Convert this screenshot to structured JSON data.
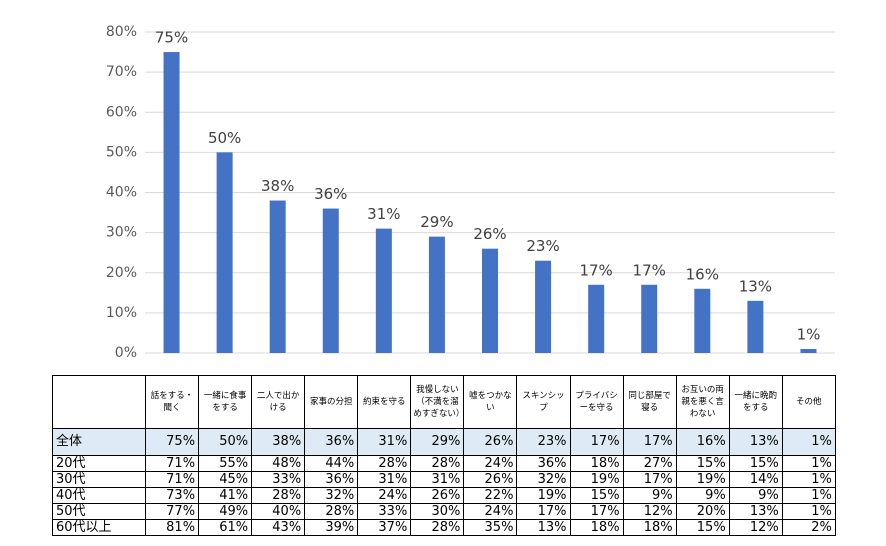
{
  "chart_data": {
    "type": "bar",
    "categories": [
      "話をする・聞く",
      "一緒に食事をする",
      "二人で出かける",
      "家事の分担",
      "約束を守る",
      "我慢しない（不満を溜めすぎない）",
      "嘘をつかない",
      "スキンシップ",
      "プライバシーを守る",
      "同じ部屋で寝る",
      "お互いの両親を悪く言わない",
      "一緒に晩酌をする",
      "その他"
    ],
    "values": [
      75,
      50,
      38,
      36,
      31,
      29,
      26,
      23,
      17,
      17,
      16,
      13,
      1
    ],
    "value_labels": [
      "75%",
      "50%",
      "38%",
      "36%",
      "31%",
      "29%",
      "26%",
      "23%",
      "17%",
      "17%",
      "16%",
      "13%",
      "1%"
    ],
    "color": "#4472c4",
    "ylim": [
      0,
      80
    ],
    "yticks": [
      {
        "value": 0,
        "label": "0%"
      },
      {
        "value": 10,
        "label": "10%"
      },
      {
        "value": 20,
        "label": "20%"
      },
      {
        "value": 30,
        "label": "30%"
      },
      {
        "value": 40,
        "label": "40%"
      },
      {
        "value": 50,
        "label": "50%"
      },
      {
        "value": 60,
        "label": "60%"
      },
      {
        "value": 70,
        "label": "70%"
      },
      {
        "value": 80,
        "label": "80%"
      }
    ],
    "grid": true
  },
  "table": {
    "total_label": "全体",
    "rows": [
      {
        "label": "20代",
        "cells": [
          "71%",
          "55%",
          "48%",
          "44%",
          "28%",
          "28%",
          "24%",
          "36%",
          "18%",
          "27%",
          "15%",
          "15%",
          "1%"
        ]
      },
      {
        "label": "30代",
        "cells": [
          "71%",
          "45%",
          "33%",
          "36%",
          "31%",
          "31%",
          "26%",
          "32%",
          "19%",
          "17%",
          "19%",
          "14%",
          "1%"
        ]
      },
      {
        "label": "40代",
        "cells": [
          "73%",
          "41%",
          "28%",
          "32%",
          "24%",
          "26%",
          "22%",
          "19%",
          "15%",
          "9%",
          "9%",
          "9%",
          "1%"
        ]
      },
      {
        "label": "50代",
        "cells": [
          "77%",
          "49%",
          "40%",
          "28%",
          "33%",
          "30%",
          "24%",
          "17%",
          "17%",
          "12%",
          "20%",
          "13%",
          "1%"
        ]
      },
      {
        "label": "60代以上",
        "cells": [
          "81%",
          "61%",
          "43%",
          "39%",
          "37%",
          "28%",
          "35%",
          "13%",
          "18%",
          "18%",
          "15%",
          "12%",
          "2%"
        ]
      }
    ]
  }
}
